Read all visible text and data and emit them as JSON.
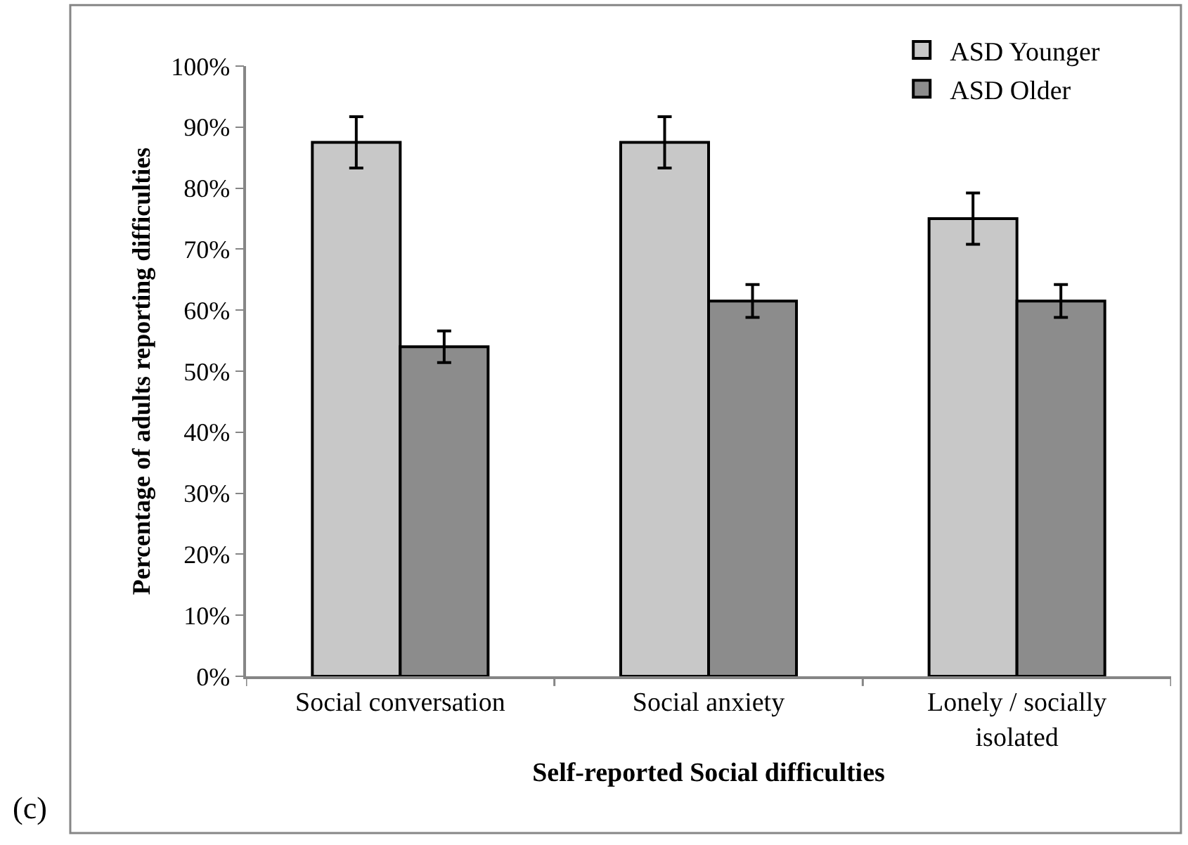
{
  "chart_data": {
    "type": "bar",
    "xlabel": "Self-reported Social difficulties",
    "ylabel": "Percentage of adults reporting difficulties",
    "categories": [
      "Social conversation",
      "Social anxiety",
      "Lonely / socially isolated"
    ],
    "series": [
      {
        "name": "ASD Younger",
        "color": "#c8c8c8",
        "values": [
          87.5,
          87.5,
          75
        ],
        "errors": [
          4.2,
          4.2,
          4.2
        ]
      },
      {
        "name": "ASD Older",
        "color": "#8c8c8c",
        "values": [
          54,
          61.5,
          61.5
        ],
        "errors": [
          2.6,
          2.7,
          2.7
        ]
      }
    ],
    "ylim": [
      0,
      100
    ],
    "yticks": [
      {
        "value": 0,
        "label": "0%"
      },
      {
        "value": 10,
        "label": "10%"
      },
      {
        "value": 20,
        "label": "20%"
      },
      {
        "value": 30,
        "label": "30%"
      },
      {
        "value": 40,
        "label": "40%"
      },
      {
        "value": 50,
        "label": "50%"
      },
      {
        "value": 60,
        "label": "60%"
      },
      {
        "value": 70,
        "label": "70%"
      },
      {
        "value": 80,
        "label": "80%"
      },
      {
        "value": 90,
        "label": "90%"
      },
      {
        "value": 100,
        "label": "100%"
      }
    ],
    "grid": false,
    "legend": "top right",
    "annotations": [
      "(c)"
    ]
  }
}
